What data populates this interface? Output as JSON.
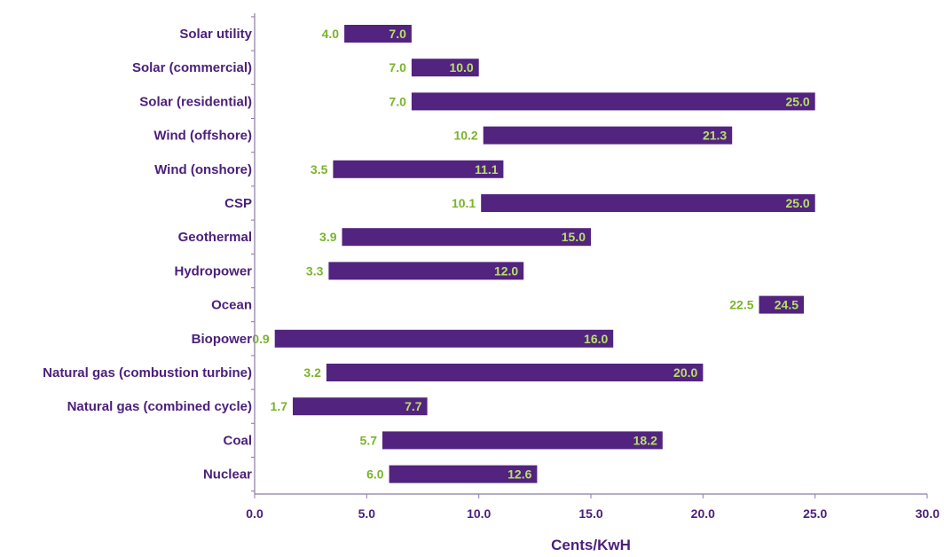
{
  "chart_data": {
    "type": "bar",
    "orientation": "horizontal",
    "variant": "floating-range",
    "xlabel": "Cents/KwH",
    "ylabel": "",
    "xlim": [
      0,
      30
    ],
    "x_ticks": [
      "0.0",
      "5.0",
      "10.0",
      "15.0",
      "20.0",
      "25.0",
      "30.0"
    ],
    "grid": false,
    "legend": "none",
    "categories": [
      "Solar utility",
      "Solar (commercial)",
      "Solar (residential)",
      "Wind (offshore)",
      "Wind (onshore)",
      "CSP",
      "Geothermal",
      "Hydropower",
      "Ocean",
      "Biopower",
      "Natural gas (combustion turbine)",
      "Natural gas (combined cycle)",
      "Coal",
      "Nuclear"
    ],
    "low_labels": [
      "4.0",
      "7.0",
      "7.0",
      "10.2",
      "3.5",
      "10.1",
      "3.9",
      "3.3",
      "22.5",
      "0.9",
      "3.2",
      "1.7",
      "5.7",
      "6.0"
    ],
    "high_labels": [
      "7.0",
      "10.0",
      "25.0",
      "21.3",
      "11.1",
      "25.0",
      "15.0",
      "12.0",
      "24.5",
      "16.0",
      "20.0",
      "7.7",
      "18.2",
      "12.6"
    ],
    "low": [
      4.0,
      7.0,
      7.0,
      10.2,
      3.5,
      10.1,
      3.9,
      3.3,
      22.5,
      0.9,
      3.2,
      1.7,
      5.7,
      6.0
    ],
    "high": [
      7.0,
      10.0,
      25.0,
      21.3,
      11.1,
      25.0,
      15.0,
      12.0,
      24.5,
      16.0,
      20.0,
      7.7,
      18.2,
      12.6
    ]
  },
  "colors": {
    "bar": "#52237f",
    "category_text": "#4b1f7a",
    "axis_text": "#4b1f7a",
    "axis_line": "#8a7aa8",
    "low_label": "#7ab42a",
    "high_label": "#b7e06a"
  }
}
